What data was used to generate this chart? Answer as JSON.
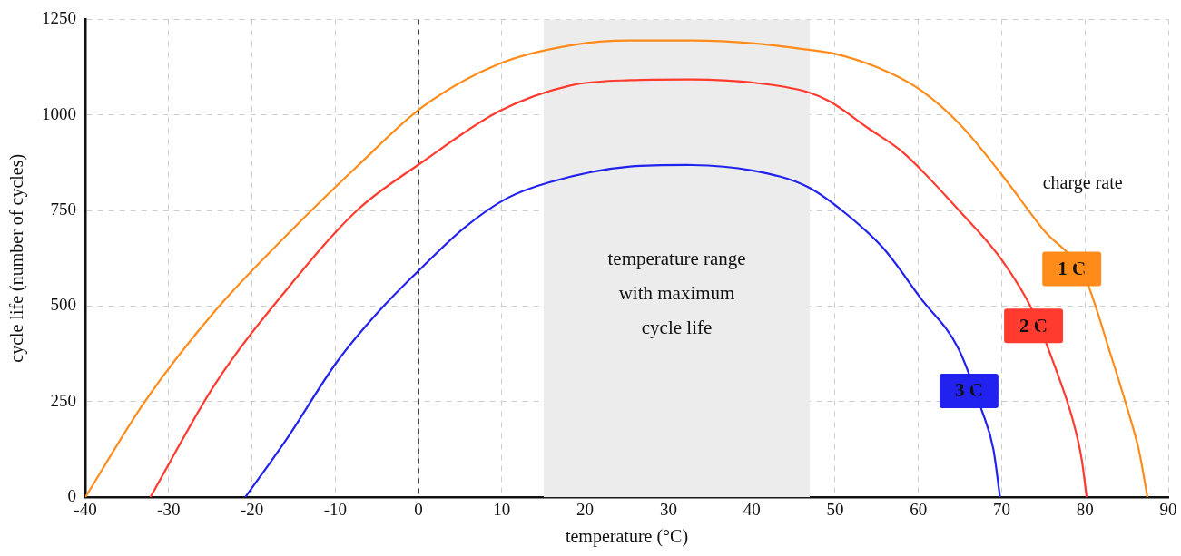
{
  "chart_data": {
    "type": "line",
    "xlabel": "temperature (°C)",
    "ylabel": "cycle life (number of cycles)",
    "xlim": [
      -40,
      90
    ],
    "xticks": [
      -40,
      -30,
      -20,
      -10,
      0,
      10,
      20,
      30,
      40,
      50,
      60,
      70,
      80,
      90
    ],
    "ylim": [
      0,
      1250
    ],
    "yticks": [
      0,
      250,
      500,
      750,
      1000,
      1250
    ],
    "grid": true,
    "legend": false,
    "marker": "none",
    "line_style": "solid",
    "series": [
      {
        "name": "1 C",
        "color": "#ff8c1a",
        "x": [
          -40,
          -32.9,
          -24.4,
          -15.8,
          -7.3,
          0.4,
          9.7,
          18.2,
          25.4,
          32.2,
          40,
          46.7,
          50,
          55,
          60,
          65,
          70,
          75,
          80,
          83,
          85,
          86.5,
          87.5
        ],
        "values": [
          0,
          249,
          488,
          686,
          867,
          1020,
          1134,
          1182,
          1195,
          1195,
          1188,
          1171,
          1160,
          1125,
          1069,
          975,
          844,
          700,
          574,
          379,
          238,
          120,
          0
        ]
      },
      {
        "name": "2 C",
        "color": "#ff3b2f",
        "x": [
          -32.2,
          -24.4,
          -15.8,
          -7.3,
          0.4,
          9.7,
          18.2,
          25.4,
          32.2,
          40,
          46.7,
          49.4,
          54,
          58.1,
          64.8,
          70,
          73.9,
          76.1,
          78.5,
          79.6,
          80.2
        ],
        "values": [
          0,
          297,
          544,
          752,
          876,
          1010,
          1077,
          1091,
          1093,
          1085,
          1060,
          1035,
          965,
          903,
          752,
          621,
          480,
          359,
          205,
          100,
          0
        ]
      },
      {
        "name": "3 C",
        "color": "#2222ee",
        "x": [
          -20.8,
          -15.8,
          -9.8,
          -4.7,
          0.4,
          5.5,
          10.6,
          15.7,
          25.4,
          32.2,
          40,
          46.7,
          51.3,
          55.8,
          60.3,
          64.8,
          67.6,
          69,
          69.8
        ],
        "values": [
          0,
          153,
          354,
          488,
          601,
          705,
          782,
          824,
          865,
          869,
          855,
          812,
          742,
          651,
          520,
          389,
          228,
          126,
          0
        ]
      }
    ],
    "ref_lines": [
      {
        "axis": "x",
        "value": 0,
        "color": "#222222",
        "line_style": "dashed"
      }
    ],
    "bands": [
      {
        "axis": "x",
        "from": 15,
        "to": 47,
        "label": "temperature range\nwith maximum\ncycle life",
        "color": "#ececec"
      }
    ],
    "annotations": [
      "charge rate"
    ]
  }
}
